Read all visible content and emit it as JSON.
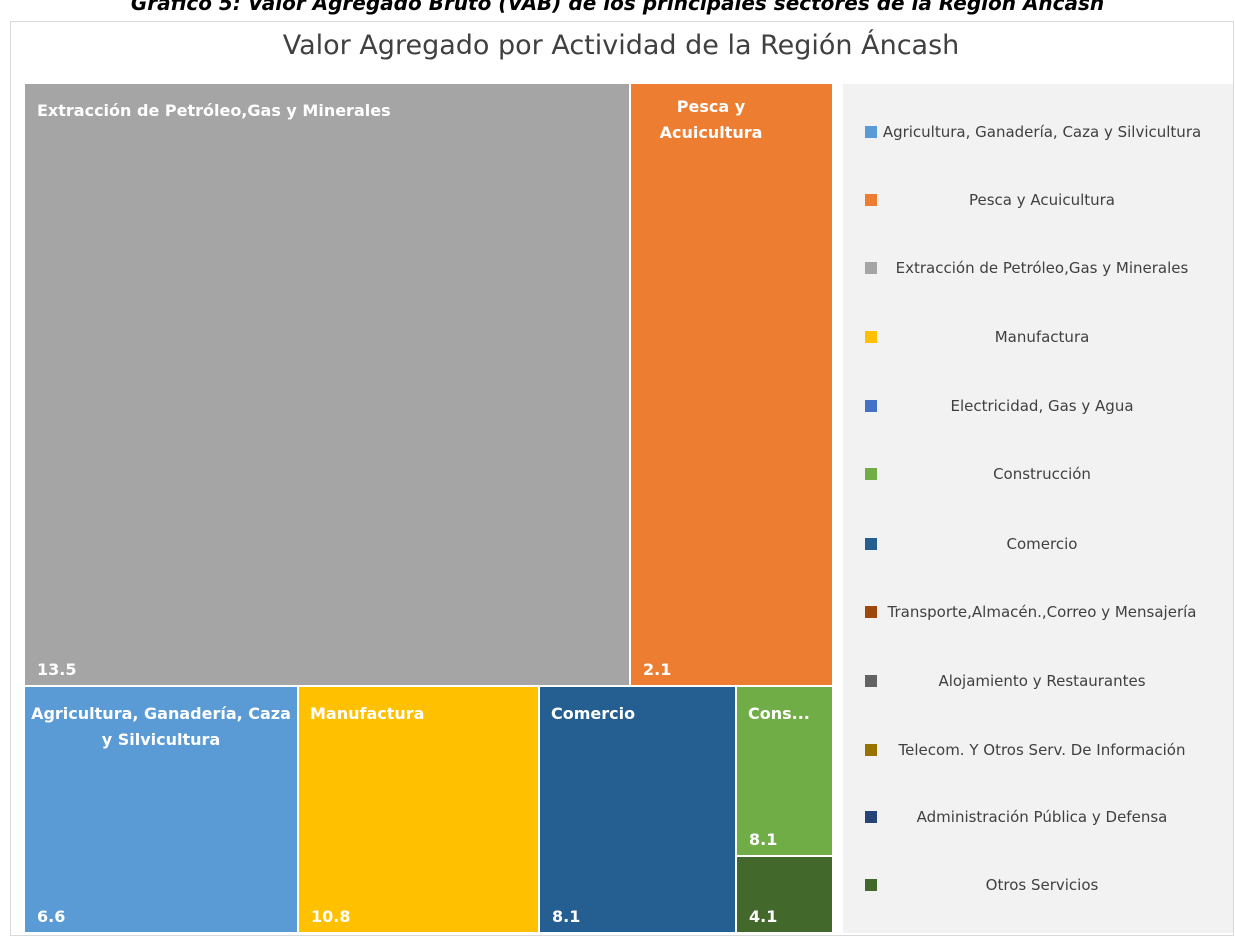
{
  "chart_data": {
    "type": "treemap",
    "caption": "Gráfico 5: Valor Agregado Bruto (VAB) de los principales sectores de la Región Áncash",
    "title": "Valor Agregado por Actividad de la Región Áncash",
    "legend": [
      {
        "name": "Agricultura, Ganadería, Caza y Silvicultura",
        "color": "#5b9bd5"
      },
      {
        "name": "Pesca y Acuicultura",
        "color": "#ed7d31"
      },
      {
        "name": "Extracción de Petróleo,Gas y Minerales",
        "color": "#a5a5a5"
      },
      {
        "name": "Manufactura",
        "color": "#ffc000"
      },
      {
        "name": "Electricidad, Gas y Agua",
        "color": "#4472c4"
      },
      {
        "name": "Construcción",
        "color": "#70ad47"
      },
      {
        "name": "Comercio",
        "color": "#255e91"
      },
      {
        "name": "Transporte,Almacén.,Correo y Mensajería",
        "color": "#9e480e"
      },
      {
        "name": "Alojamiento y Restaurantes",
        "color": "#636363"
      },
      {
        "name": "Telecom. Y Otros Serv. De Información",
        "color": "#997300"
      },
      {
        "name": "Administración Pública y Defensa",
        "color": "#264478"
      },
      {
        "name": "Otros Servicios",
        "color": "#43682b"
      }
    ],
    "items": [
      {
        "label": "Extracción de Petróleo,Gas y Minerales",
        "value": 13.5,
        "color": "#a5a5a5"
      },
      {
        "label": "Pesca y Acuicultura",
        "value": 2.1,
        "color": "#ed7d31"
      },
      {
        "label": "Agricultura, Ganadería, Caza y Silvicultura",
        "value": 6.6,
        "color": "#5b9bd5"
      },
      {
        "label": "Manufactura",
        "value": 10.8,
        "color": "#ffc000"
      },
      {
        "label": "Comercio",
        "value": 8.1,
        "color": "#255e91"
      },
      {
        "label": "Cons...",
        "value": 8.1,
        "color": "#70ad47"
      },
      {
        "value": 4.1,
        "color": "#43682b"
      }
    ]
  }
}
